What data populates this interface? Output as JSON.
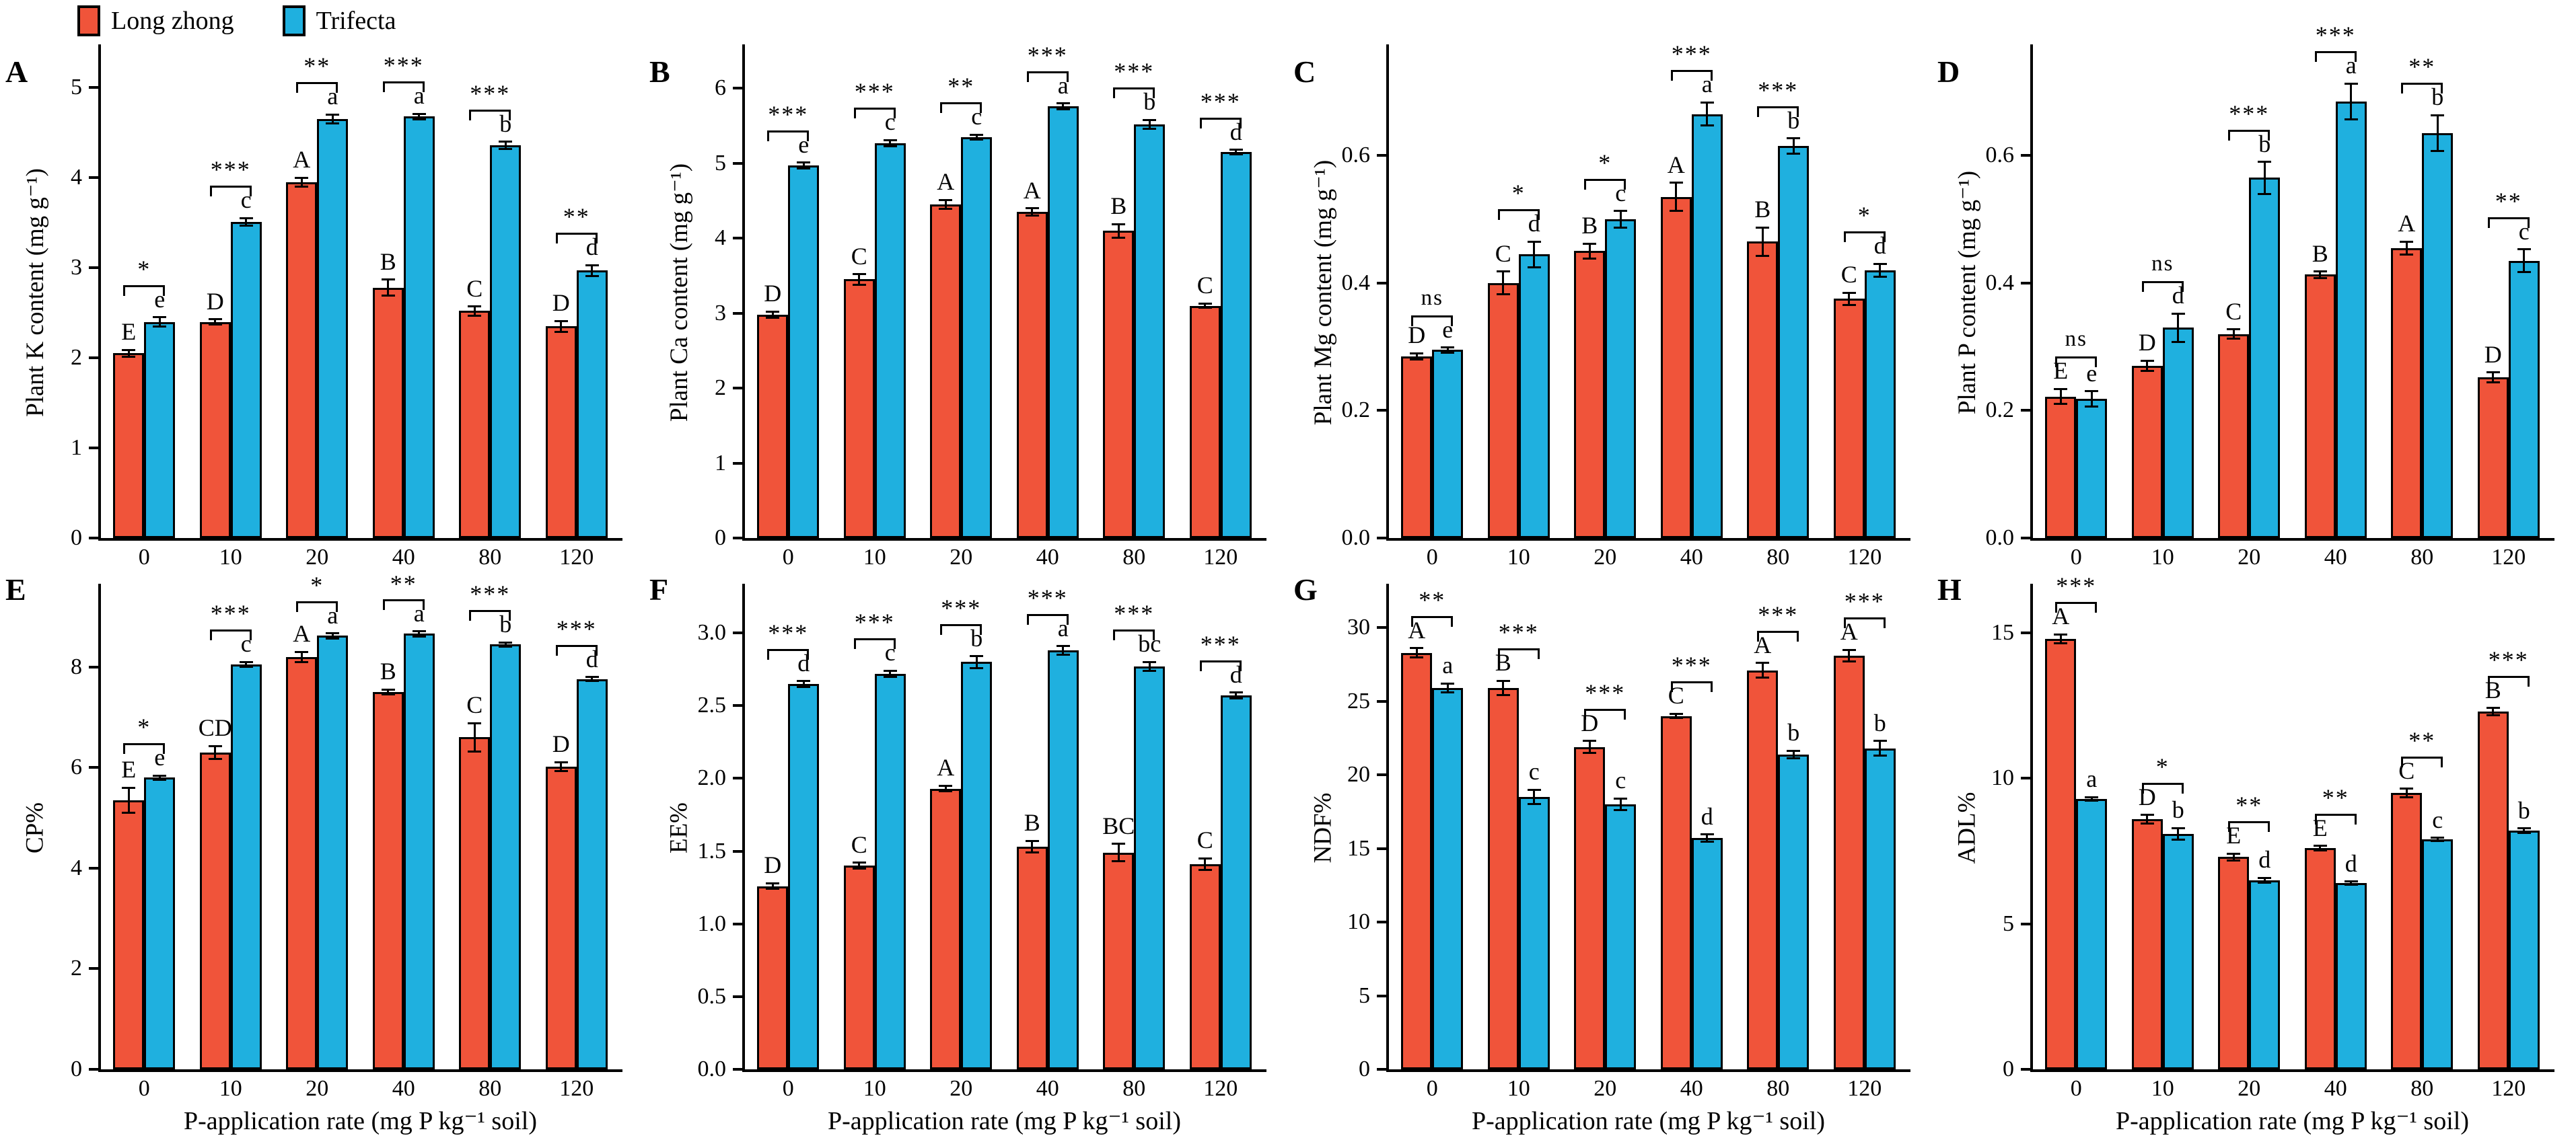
{
  "legend": {
    "items": [
      {
        "label": "Long zhong",
        "color": "#F0543A"
      },
      {
        "label": "Trifecta",
        "color": "#1FB0DF"
      }
    ]
  },
  "xlabel": "P-application rate (mg P kg⁻¹ soil)",
  "categories": [
    "0",
    "10",
    "20",
    "40",
    "80",
    "120"
  ],
  "chart_data": [
    {
      "type": "bar",
      "panel": "A",
      "ylabel": "Plant K content (mg g⁻¹)",
      "ylim": [
        0,
        5.45
      ],
      "yticks": [
        "0",
        "1",
        "2",
        "3",
        "4",
        "5"
      ],
      "categories": [
        "0",
        "10",
        "20",
        "40",
        "80",
        "120"
      ],
      "series": [
        {
          "name": "Long zhong",
          "values": [
            2.05,
            2.4,
            3.95,
            2.78,
            2.52,
            2.35
          ],
          "errors": [
            0.04,
            0.03,
            0.05,
            0.09,
            0.05,
            0.06
          ],
          "letters": [
            "E",
            "D",
            "A",
            "B",
            "C",
            "D"
          ]
        },
        {
          "name": "Trifecta",
          "values": [
            2.4,
            3.51,
            4.65,
            4.68,
            4.36,
            2.97
          ],
          "errors": [
            0.05,
            0.04,
            0.05,
            0.03,
            0.04,
            0.06
          ],
          "letters": [
            "e",
            "c",
            "a",
            "a",
            "b",
            "d"
          ]
        }
      ],
      "significance": [
        "*",
        "***",
        "**",
        "***",
        "***",
        "**"
      ]
    },
    {
      "type": "bar",
      "panel": "B",
      "ylabel": "Plant Ca content (mg g⁻¹)",
      "ylim": [
        0,
        6.55
      ],
      "yticks": [
        "0",
        "1",
        "2",
        "3",
        "4",
        "5",
        "6"
      ],
      "categories": [
        "0",
        "10",
        "20",
        "40",
        "80",
        "120"
      ],
      "series": [
        {
          "name": "Long zhong",
          "values": [
            2.98,
            3.45,
            4.45,
            4.35,
            4.1,
            3.1
          ],
          "errors": [
            0.04,
            0.07,
            0.06,
            0.05,
            0.09,
            0.03
          ],
          "letters": [
            "D",
            "C",
            "A",
            "A",
            "B",
            "C"
          ]
        },
        {
          "name": "Trifecta",
          "values": [
            4.97,
            5.27,
            5.35,
            5.76,
            5.52,
            5.15
          ],
          "errors": [
            0.04,
            0.04,
            0.03,
            0.04,
            0.06,
            0.03
          ],
          "letters": [
            "e",
            "c",
            "c",
            "a",
            "b",
            "d"
          ]
        }
      ],
      "significance": [
        "***",
        "***",
        "**",
        "***",
        "***",
        "***"
      ]
    },
    {
      "type": "bar",
      "panel": "C",
      "ylabel": "Plant Mg content (mg g⁻¹)",
      "ylim": [
        0,
        0.77
      ],
      "yticks": [
        "0.0",
        "0.2",
        "0.4",
        "0.6"
      ],
      "categories": [
        "0",
        "10",
        "20",
        "40",
        "80",
        "120"
      ],
      "series": [
        {
          "name": "Long zhong",
          "values": [
            0.285,
            0.4,
            0.45,
            0.535,
            0.465,
            0.375
          ],
          "errors": [
            0.005,
            0.018,
            0.012,
            0.022,
            0.022,
            0.01
          ],
          "letters": [
            "D",
            "C",
            "B",
            "A",
            "B",
            "C"
          ]
        },
        {
          "name": "Trifecta",
          "values": [
            0.295,
            0.445,
            0.5,
            0.665,
            0.615,
            0.42
          ],
          "errors": [
            0.004,
            0.02,
            0.013,
            0.018,
            0.012,
            0.01
          ],
          "letters": [
            "e",
            "d",
            "c",
            "a",
            "b",
            "d"
          ]
        }
      ],
      "significance": [
        "ns",
        "*",
        "*",
        "***",
        "***",
        "*"
      ]
    },
    {
      "type": "bar",
      "panel": "D",
      "ylabel": "Plant P content (mg g⁻¹)",
      "ylim": [
        0,
        0.77
      ],
      "yticks": [
        "0.0",
        "0.2",
        "0.4",
        "0.6"
      ],
      "categories": [
        "0",
        "10",
        "20",
        "40",
        "80",
        "120"
      ],
      "series": [
        {
          "name": "Long zhong",
          "values": [
            0.222,
            0.27,
            0.32,
            0.413,
            0.455,
            0.252
          ],
          "errors": [
            0.012,
            0.008,
            0.007,
            0.005,
            0.01,
            0.008
          ],
          "letters": [
            "E",
            "D",
            "C",
            "B",
            "A",
            "D"
          ]
        },
        {
          "name": "Trifecta",
          "values": [
            0.218,
            0.33,
            0.565,
            0.685,
            0.635,
            0.435
          ],
          "errors": [
            0.012,
            0.022,
            0.025,
            0.028,
            0.028,
            0.018
          ],
          "letters": [
            "e",
            "d",
            "b",
            "a",
            "b",
            "c"
          ]
        }
      ],
      "significance": [
        "ns",
        "ns",
        "***",
        "***",
        "**",
        "**"
      ]
    },
    {
      "type": "bar",
      "panel": "E",
      "ylabel": "CP%",
      "ylim": [
        0,
        9.6
      ],
      "yticks": [
        "0",
        "2",
        "4",
        "6",
        "8"
      ],
      "categories": [
        "0",
        "10",
        "20",
        "40",
        "80",
        "120"
      ],
      "series": [
        {
          "name": "Long zhong",
          "values": [
            5.35,
            6.3,
            8.2,
            7.5,
            6.6,
            6.02
          ],
          "errors": [
            0.25,
            0.13,
            0.1,
            0.05,
            0.28,
            0.09
          ],
          "letters": [
            "E",
            "CD",
            "A",
            "B",
            "C",
            "D"
          ]
        },
        {
          "name": "Trifecta",
          "values": [
            5.8,
            8.05,
            8.62,
            8.66,
            8.45,
            7.76
          ],
          "errors": [
            0.04,
            0.05,
            0.05,
            0.05,
            0.04,
            0.04
          ],
          "letters": [
            "e",
            "c",
            "a",
            "a",
            "b",
            "d"
          ]
        }
      ],
      "significance": [
        "*",
        "***",
        "*",
        "**",
        "***",
        "***"
      ]
    },
    {
      "type": "bar",
      "panel": "F",
      "ylabel": "EE%",
      "ylim": [
        0,
        3.32
      ],
      "yticks": [
        "0.0",
        "0.5",
        "1.0",
        "1.5",
        "2.0",
        "2.5",
        "3.0"
      ],
      "categories": [
        "0",
        "10",
        "20",
        "40",
        "80",
        "120"
      ],
      "series": [
        {
          "name": "Long zhong",
          "values": [
            1.26,
            1.4,
            1.93,
            1.53,
            1.49,
            1.41
          ],
          "errors": [
            0.02,
            0.02,
            0.02,
            0.04,
            0.06,
            0.04
          ],
          "letters": [
            "D",
            "C",
            "A",
            "B",
            "BC",
            "C"
          ]
        },
        {
          "name": "Trifecta",
          "values": [
            2.65,
            2.72,
            2.8,
            2.88,
            2.77,
            2.57
          ],
          "errors": [
            0.02,
            0.02,
            0.04,
            0.03,
            0.03,
            0.02
          ],
          "letters": [
            "d",
            "c",
            "b",
            "a",
            "bc",
            "d"
          ]
        }
      ],
      "significance": [
        "***",
        "***",
        "***",
        "***",
        "***",
        "***"
      ]
    },
    {
      "type": "bar",
      "panel": "G",
      "ylabel": "NDF%",
      "ylim": [
        0,
        32.8
      ],
      "yticks": [
        "0",
        "5",
        "10",
        "15",
        "20",
        "25",
        "30"
      ],
      "categories": [
        "0",
        "10",
        "20",
        "40",
        "80",
        "120"
      ],
      "series": [
        {
          "name": "Long zhong",
          "values": [
            28.3,
            25.9,
            21.9,
            24.0,
            27.1,
            28.1
          ],
          "errors": [
            0.3,
            0.5,
            0.4,
            0.15,
            0.5,
            0.4
          ],
          "letters": [
            "A",
            "B",
            "D",
            "C",
            "A",
            "A"
          ]
        },
        {
          "name": "Trifecta",
          "values": [
            25.9,
            18.5,
            18.0,
            15.7,
            21.4,
            21.8
          ],
          "errors": [
            0.3,
            0.5,
            0.4,
            0.25,
            0.25,
            0.5
          ],
          "letters": [
            "a",
            "c",
            "c",
            "d",
            "b",
            "b"
          ]
        }
      ],
      "significance": [
        "**",
        "***",
        "***",
        "***",
        "***",
        "***"
      ]
    },
    {
      "type": "bar",
      "panel": "H",
      "ylabel": "ADL%",
      "ylim": [
        0,
        16.6
      ],
      "yticks": [
        "0",
        "5",
        "10",
        "15"
      ],
      "categories": [
        "0",
        "10",
        "20",
        "40",
        "80",
        "120"
      ],
      "series": [
        {
          "name": "Long zhong",
          "values": [
            14.8,
            8.6,
            7.3,
            7.6,
            9.5,
            12.3
          ],
          "errors": [
            0.15,
            0.15,
            0.12,
            0.08,
            0.15,
            0.12
          ],
          "letters": [
            "A",
            "D",
            "E",
            "E",
            "C",
            "B"
          ]
        },
        {
          "name": "Trifecta",
          "values": [
            9.3,
            8.1,
            6.5,
            6.4,
            7.9,
            8.2
          ],
          "errors": [
            0.06,
            0.2,
            0.08,
            0.06,
            0.06,
            0.08
          ],
          "letters": [
            "a",
            "b",
            "d",
            "d",
            "c",
            "b"
          ]
        }
      ],
      "significance": [
        "***",
        "*",
        "**",
        "**",
        "**",
        "***"
      ]
    }
  ]
}
